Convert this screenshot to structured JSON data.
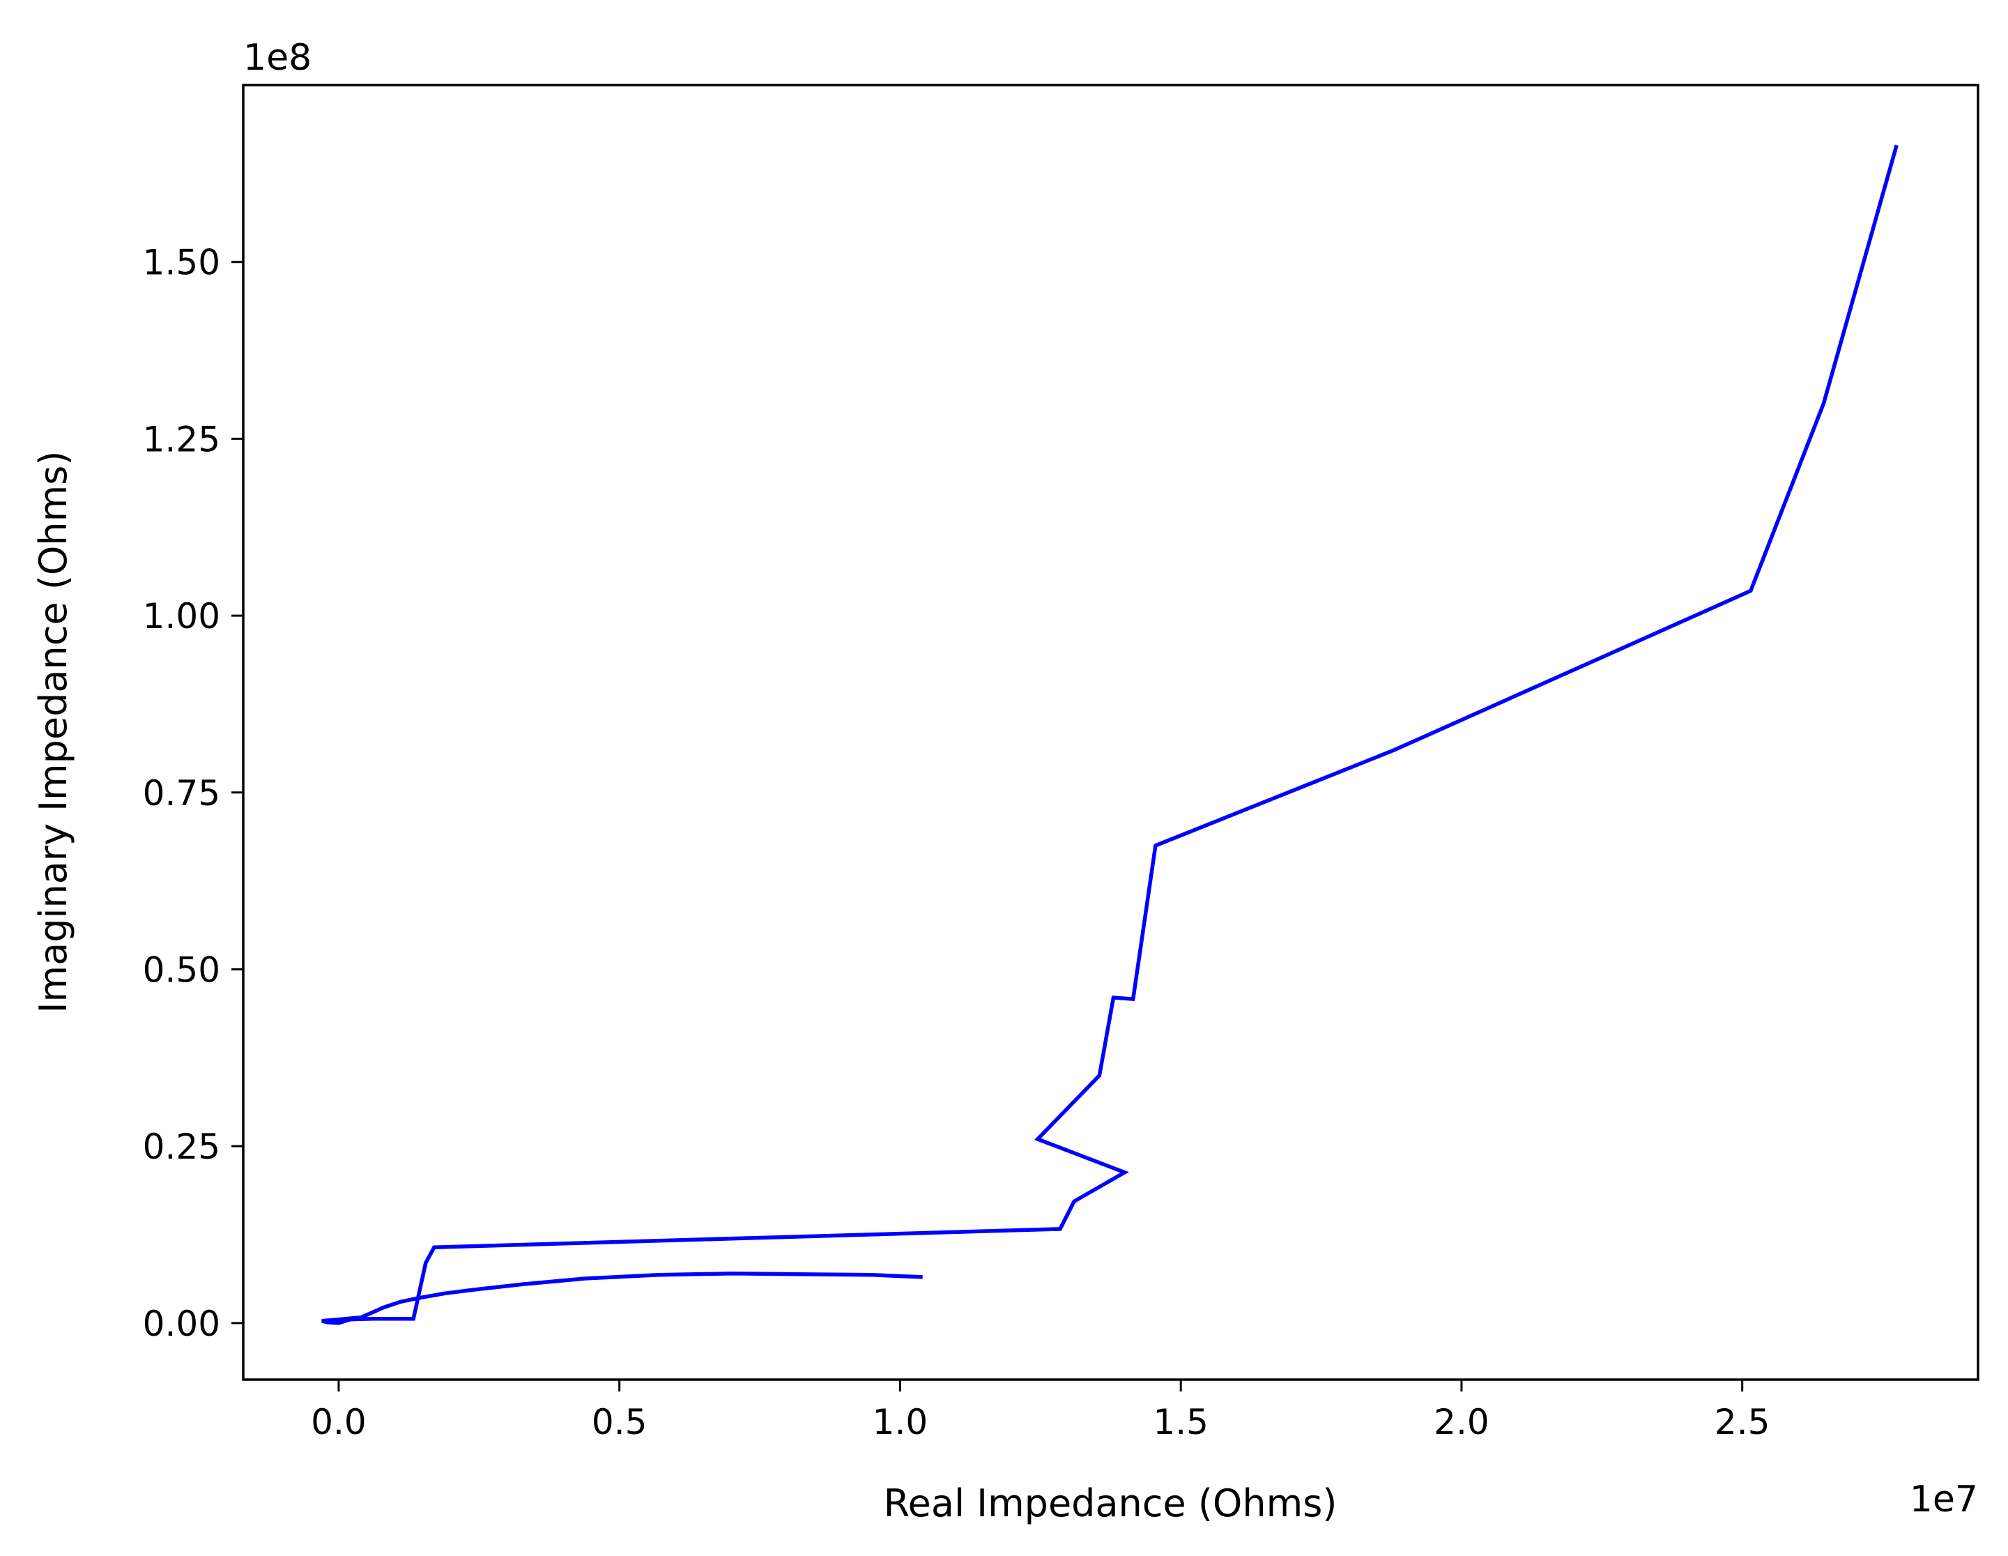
{
  "chart_data": {
    "type": "line",
    "title": "",
    "xlabel": "Real Impedance (Ohms)",
    "ylabel": "Imaginary Impedance (Ohms)",
    "x_offset_text": "1e7",
    "y_offset_text": "1e8",
    "x_scale": 10000000,
    "y_scale": 100000000,
    "xlim": [
      -0.17,
      2.92
    ],
    "ylim": [
      -0.08,
      1.75
    ],
    "x_ticks": [
      0.0,
      0.5,
      1.0,
      1.5,
      2.0,
      2.5
    ],
    "x_tick_labels": [
      "0.0",
      "0.5",
      "1.0",
      "1.5",
      "2.0",
      "2.5"
    ],
    "y_ticks": [
      0.0,
      0.25,
      0.5,
      0.75,
      1.0,
      1.25,
      1.5
    ],
    "y_tick_labels": [
      "0.00",
      "0.25",
      "0.50",
      "0.75",
      "1.00",
      "1.25",
      "1.50"
    ],
    "grid": false,
    "line_color": "#0000ff",
    "series": [
      {
        "x": [
          1.04,
          0.95,
          0.7,
          0.57,
          0.44,
          0.33,
          0.24,
          0.19,
          0.14,
          0.11,
          0.08,
          0.06,
          0.04,
          0.0,
          -0.03,
          -0.02,
          0.0,
          0.02,
          0.06,
          0.1,
          0.133,
          0.135,
          0.155,
          0.17,
          1.285,
          1.31,
          1.4,
          1.245,
          1.355,
          1.38,
          1.415,
          1.455,
          1.88,
          2.515,
          2.645,
          2.775
        ],
        "y": [
          0.065,
          0.068,
          0.07,
          0.068,
          0.063,
          0.055,
          0.047,
          0.042,
          0.035,
          0.03,
          0.022,
          0.015,
          0.008,
          0.005,
          0.003,
          0.001,
          0.0,
          0.005,
          0.006,
          0.006,
          0.006,
          0.013,
          0.085,
          0.107,
          0.133,
          0.172,
          0.213,
          0.26,
          0.35,
          0.46,
          0.458,
          0.675,
          0.81,
          1.035,
          1.3,
          1.665
        ]
      }
    ]
  }
}
